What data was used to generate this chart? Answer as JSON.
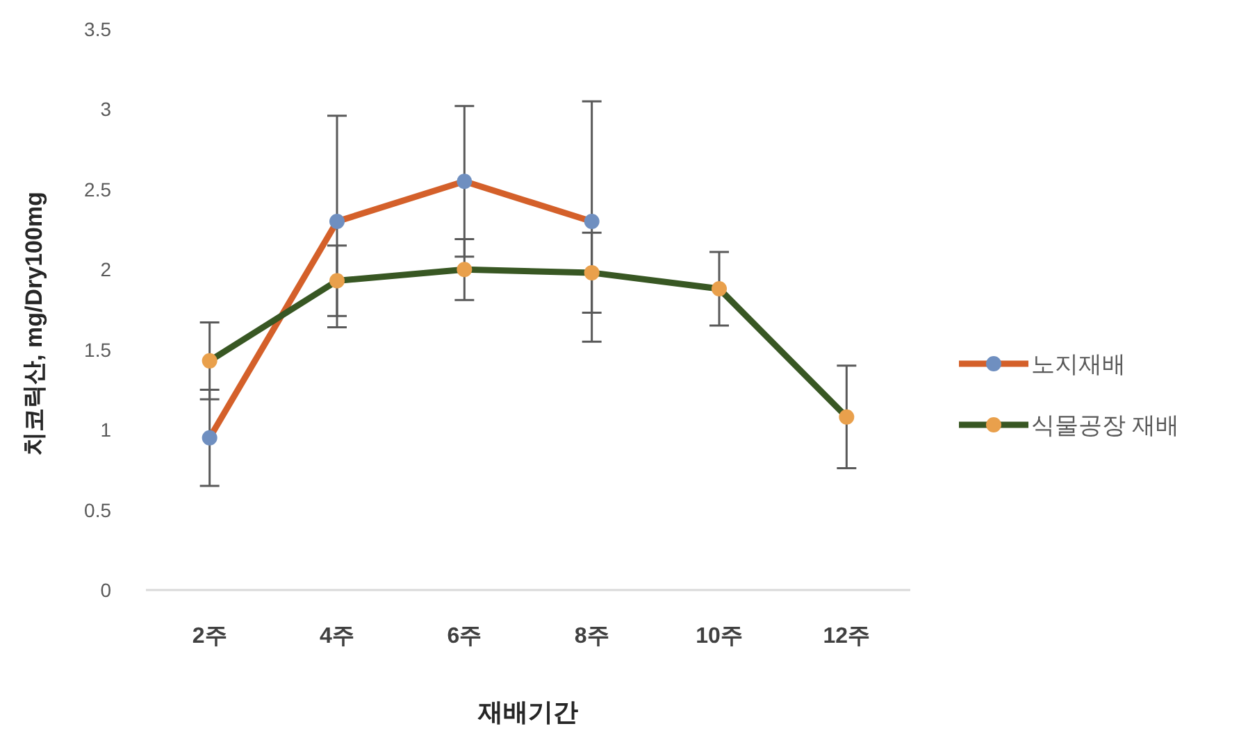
{
  "chart_data": {
    "type": "line",
    "xlabel": "재배기간",
    "ylabel": "치코릭산, mg/Dry100mg",
    "categories": [
      "2주",
      "4주",
      "6주",
      "8주",
      "10주",
      "12주"
    ],
    "series": [
      {
        "name": "노지재배",
        "color": "#d4602a",
        "values": [
          0.95,
          2.3,
          2.55,
          2.3,
          null,
          null
        ],
        "errors": [
          0.3,
          0.66,
          0.47,
          0.75,
          null,
          null
        ]
      },
      {
        "name": "식물공장 재배",
        "color": "#385723",
        "values": [
          1.43,
          1.93,
          2.0,
          1.98,
          1.88,
          1.08
        ],
        "errors": [
          0.24,
          0.22,
          0.19,
          0.25,
          0.23,
          0.32
        ]
      }
    ],
    "ylim": [
      0,
      3.5
    ],
    "yticks": [
      0,
      0.5,
      1,
      1.5,
      2,
      2.5,
      3,
      3.5
    ],
    "grid": false,
    "legend": "right",
    "marker": "circle",
    "line_style": "solid"
  }
}
